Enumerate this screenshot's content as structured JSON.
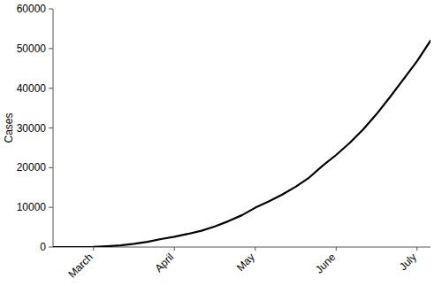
{
  "chart_data": {
    "type": "line",
    "y_label": "Cases",
    "categories": [
      null,
      null,
      null,
      "March",
      null,
      null,
      null,
      null,
      null,
      "April",
      null,
      null,
      null,
      null,
      null,
      "May",
      null,
      null,
      null,
      null,
      null,
      "June",
      null,
      null,
      null,
      null,
      null,
      "July",
      null
    ],
    "values": [
      0,
      0,
      0,
      50,
      200,
      400,
      800,
      1300,
      2000,
      2600,
      3300,
      4100,
      5200,
      6500,
      8000,
      9900,
      11500,
      13200,
      15200,
      17500,
      20500,
      23200,
      26200,
      29600,
      33500,
      37800,
      42300,
      46800,
      52000
    ],
    "color": "#000000",
    "ylim": [
      0,
      60000
    ],
    "yticks": [
      0,
      10000,
      20000,
      30000,
      40000,
      50000,
      60000
    ],
    "grid": false
  }
}
